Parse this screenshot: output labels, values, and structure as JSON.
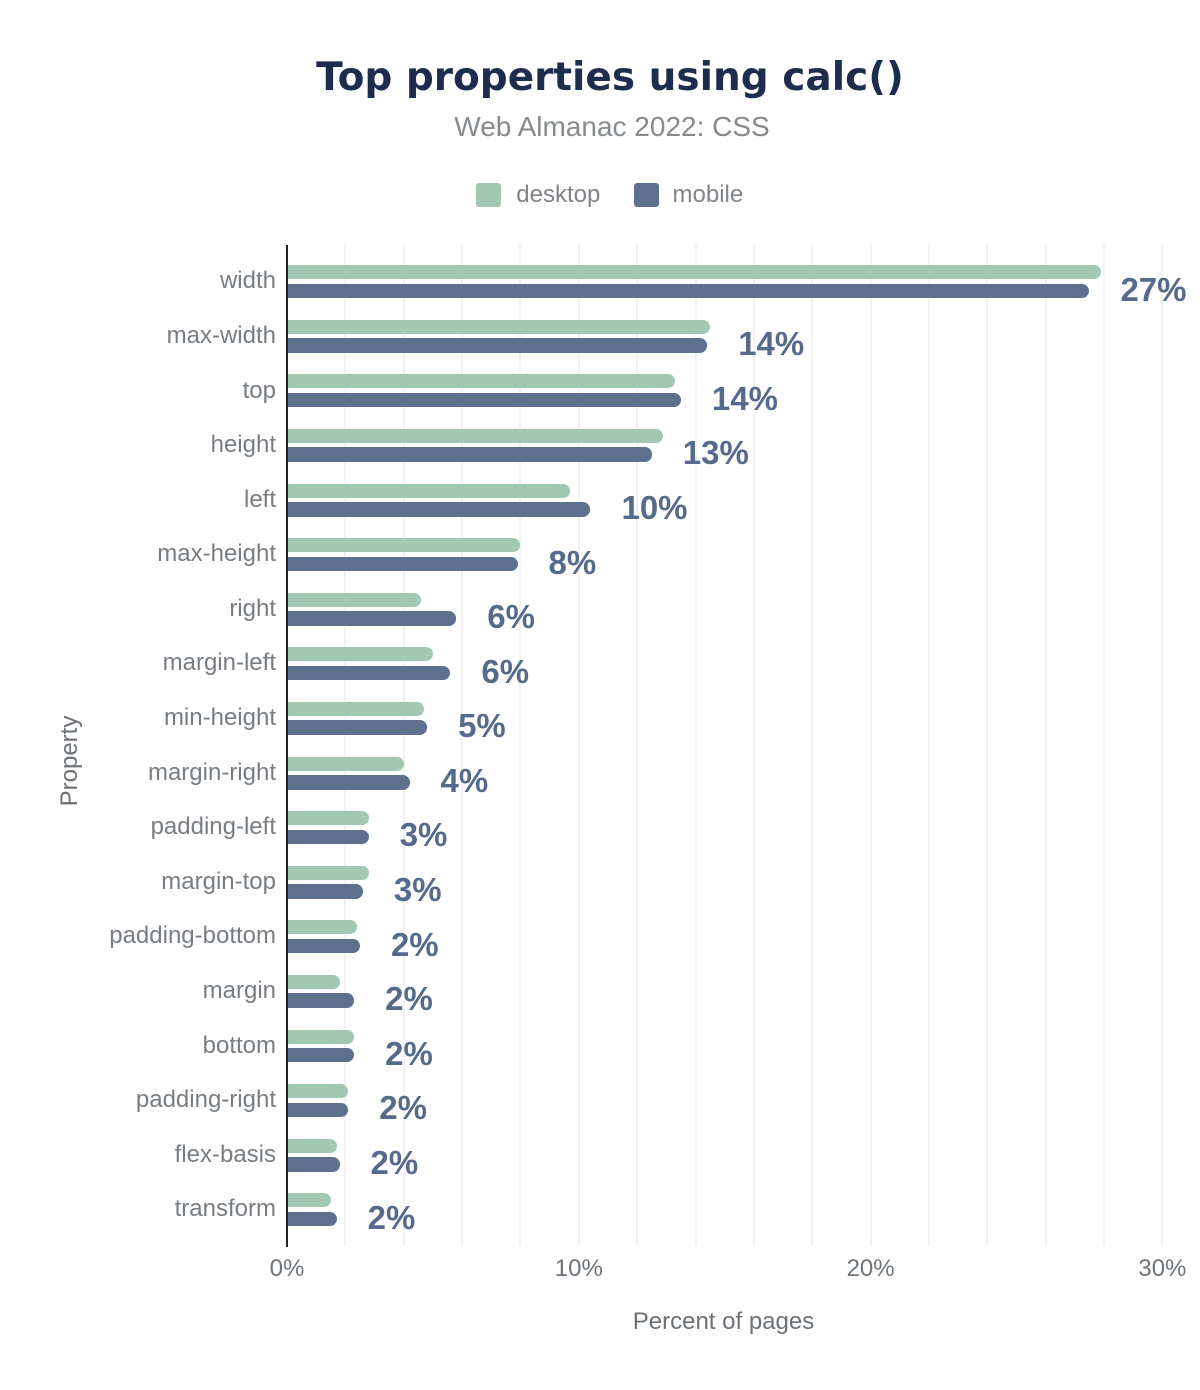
{
  "title": "Top properties using calc()",
  "subtitle": "Web Almanac 2022: CSS",
  "legend": {
    "items": [
      {
        "label": "desktop",
        "color": "#a2c8b4"
      },
      {
        "label": "mobile",
        "color": "#5d718f"
      }
    ]
  },
  "x_axis": {
    "title": "Percent of pages",
    "tick_labels": [
      "0%",
      "10%",
      "20%",
      "30%"
    ]
  },
  "y_axis": {
    "title": "Property"
  },
  "colors": {
    "background": "#ffffff",
    "title_text": "#1e2d4d",
    "subtitle_text": "#868a8d",
    "legend_text": "#808488",
    "category_text": "#787d82",
    "tick_text": "#6e7479",
    "axis_title_text": "#6b7075",
    "value_label_text": "#566a8c",
    "gridline": "#f2f2f3",
    "axis_line": "#212121",
    "desktop_bar": "#a2c8b4",
    "mobile_bar": "#5d718f"
  },
  "chart_data": {
    "type": "bar",
    "orientation": "horizontal",
    "title": "Top properties using calc()",
    "subtitle": "Web Almanac 2022: CSS",
    "xlabel": "Percent of pages",
    "ylabel": "Property",
    "xlim": [
      0,
      30
    ],
    "x_ticks": [
      0,
      10,
      20,
      30
    ],
    "x_tick_labels": [
      "0%",
      "10%",
      "20%",
      "30%"
    ],
    "gridline_step_pct": 2,
    "grid": true,
    "legend_position": "top",
    "value_label_series": "mobile",
    "value_label_format": "rounded percent",
    "categories": [
      "width",
      "max-width",
      "top",
      "height",
      "left",
      "max-height",
      "right",
      "margin-left",
      "min-height",
      "margin-right",
      "padding-left",
      "margin-top",
      "padding-bottom",
      "margin",
      "bottom",
      "padding-right",
      "flex-basis",
      "transform"
    ],
    "series": [
      {
        "name": "desktop",
        "color": "#a2c8b4",
        "values": [
          27.9,
          14.5,
          13.3,
          12.9,
          9.7,
          8.0,
          4.6,
          5.0,
          4.7,
          4.0,
          2.8,
          2.8,
          2.4,
          1.8,
          2.3,
          2.1,
          1.7,
          1.5
        ]
      },
      {
        "name": "mobile",
        "color": "#5d718f",
        "values": [
          27.5,
          14.4,
          13.5,
          12.5,
          10.4,
          7.9,
          5.8,
          5.6,
          4.8,
          4.2,
          2.8,
          2.6,
          2.5,
          2.3,
          2.3,
          2.1,
          1.8,
          1.7
        ]
      }
    ],
    "value_labels": [
      "27%",
      "14%",
      "14%",
      "13%",
      "10%",
      "8%",
      "6%",
      "6%",
      "5%",
      "4%",
      "3%",
      "3%",
      "2%",
      "2%",
      "2%",
      "2%",
      "2%",
      "2%"
    ]
  }
}
